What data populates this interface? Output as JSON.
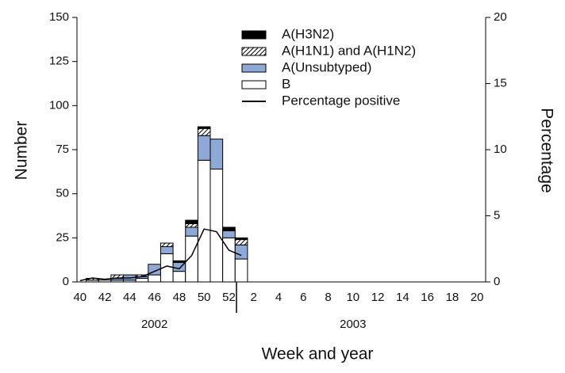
{
  "chart_data": {
    "type": "bar",
    "x_label": "Week and year",
    "y_label": "Number",
    "y2_label": "Percentage",
    "year_labels": [
      "2002",
      "2003"
    ],
    "categories": [
      40,
      null,
      42,
      null,
      44,
      null,
      46,
      null,
      48,
      null,
      50,
      null,
      52,
      null,
      2,
      null,
      4,
      null,
      6,
      null,
      8,
      null,
      10,
      null,
      12,
      null,
      14,
      null,
      16,
      null,
      18,
      null,
      20
    ],
    "series": [
      {
        "name": "A(H3N2)",
        "color": "#000000",
        "values": [
          0,
          0,
          0,
          0,
          0,
          0,
          0,
          0,
          1,
          2,
          1,
          0,
          2,
          1,
          0,
          0,
          0,
          0,
          0,
          0,
          0,
          0,
          0,
          0,
          0,
          0,
          0,
          0,
          0,
          0,
          0,
          0,
          0
        ]
      },
      {
        "name": "A(H1N1) and A(H1N2)",
        "color": "#ffffff",
        "hatch": true,
        "values": [
          0,
          1,
          0,
          2,
          0,
          1,
          0,
          2,
          0,
          2,
          4,
          0,
          0,
          3,
          0,
          0,
          0,
          0,
          0,
          0,
          0,
          0,
          0,
          0,
          0,
          0,
          0,
          0,
          0,
          0,
          0,
          0,
          0
        ]
      },
      {
        "name": "A(Unsubtyped)",
        "color": "#8fa9d6",
        "values": [
          0,
          0,
          0,
          1,
          3,
          1,
          6,
          4,
          5,
          5,
          14,
          17,
          4,
          8,
          0,
          0,
          0,
          0,
          0,
          0,
          0,
          0,
          0,
          0,
          0,
          0,
          0,
          0,
          0,
          0,
          0,
          0,
          0
        ]
      },
      {
        "name": "B",
        "color": "#ffffff",
        "values": [
          0,
          1,
          1,
          1,
          1,
          2,
          4,
          16,
          6,
          26,
          69,
          64,
          25,
          13,
          0,
          0,
          0,
          0,
          0,
          0,
          0,
          0,
          0,
          0,
          0,
          0,
          0,
          0,
          0,
          0,
          0,
          0,
          0
        ]
      },
      {
        "name": "Percentage positive",
        "color": "#000000",
        "type": "line",
        "axis": "y2",
        "values": [
          0.1,
          0.3,
          0.2,
          0.3,
          0.3,
          0.4,
          0.8,
          1.2,
          1.0,
          2.0,
          4.0,
          3.8,
          2.4,
          2.0,
          null,
          null,
          null,
          null,
          null,
          null,
          null,
          null,
          null,
          null,
          null,
          null,
          null,
          null,
          null,
          null,
          null,
          null,
          null
        ]
      }
    ],
    "ylim": [
      0,
      150
    ],
    "yticks": [
      0,
      25,
      50,
      75,
      100,
      125,
      150
    ],
    "y2lim": [
      0,
      20
    ],
    "y2ticks": [
      0,
      5,
      10,
      15,
      20
    ]
  }
}
